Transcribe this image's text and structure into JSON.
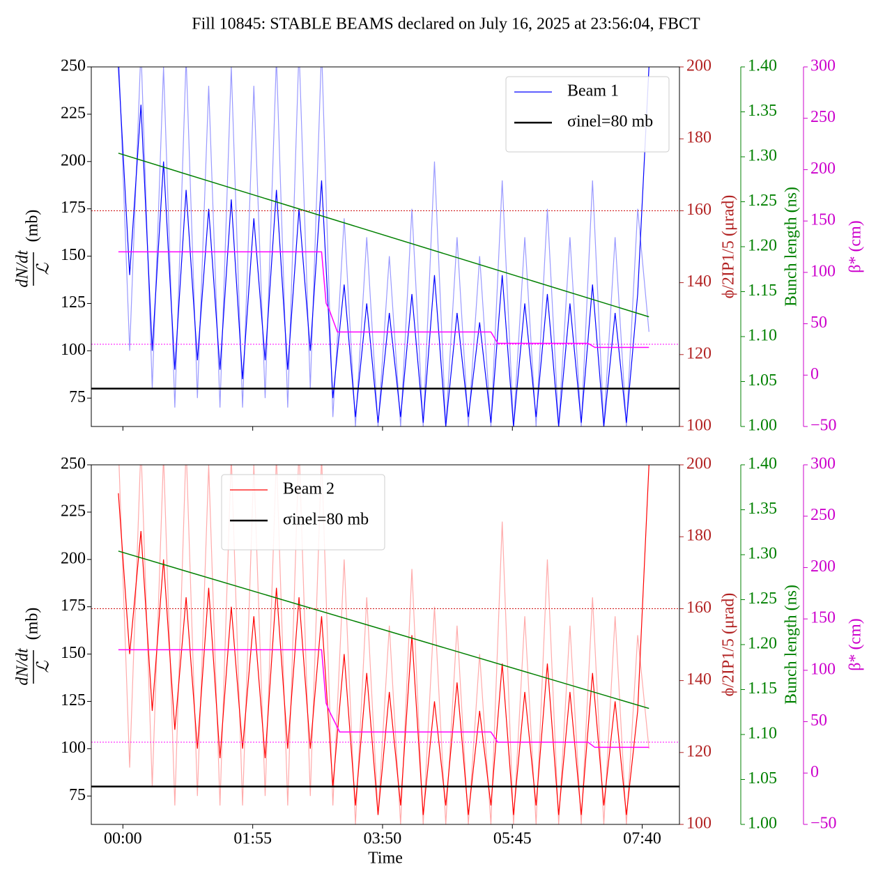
{
  "title": "Fill 10845: STABLE BEAMS declared on July 16, 2025 at 23:56:04, FBCT",
  "chart_data": [
    {
      "type": "line",
      "legend": "upper right",
      "xlim": [
        -28,
        493
      ],
      "xticks": [
        0,
        115,
        230,
        345,
        460
      ],
      "ylim": [
        60,
        250
      ],
      "yticks": [
        75,
        100,
        125,
        150,
        175,
        200,
        225,
        250
      ],
      "ylabel": {
        "numerator": "dN/dt",
        "denominator": "ℒ",
        "unit": "(mb)"
      },
      "y2lim": [
        100,
        200
      ],
      "y2ticks": [
        100,
        120,
        140,
        160,
        180,
        200
      ],
      "y2label": "ϕ/2IP1/5 (μrad)",
      "y2color": "#b22222",
      "y3lim": [
        1.0,
        1.4
      ],
      "y3ticks": [
        {
          "value": 1.0,
          "label": "1.00"
        },
        1.05,
        {
          "value": 1.1,
          "label": "1.10"
        },
        1.15,
        {
          "value": 1.2,
          "label": "1.20"
        },
        1.25,
        {
          "value": 1.3,
          "label": "1.30"
        },
        1.35,
        {
          "value": 1.4,
          "label": "1.40"
        }
      ],
      "y3label": "Bunch length (ns)",
      "y3color": "#008000",
      "y4lim": [
        -50,
        300
      ],
      "y4ticks": [
        {
          "value": -50,
          "label": "−50"
        },
        0,
        50,
        100,
        150,
        200,
        250,
        300
      ],
      "y4label": "β* (cm)",
      "y4color": "#cc00cc",
      "ref_lines": [
        {
          "axis": "y2",
          "value": 160,
          "color": "#cc0000"
        },
        {
          "axis": "y4",
          "value": 30,
          "color": "#ff00ff"
        }
      ],
      "x": [
        -4,
        6,
        16,
        26,
        36,
        46,
        56,
        66,
        76,
        86,
        96,
        106,
        116,
        126,
        136,
        146,
        156,
        166,
        176,
        186,
        196,
        206,
        216,
        226,
        236,
        246,
        256,
        266,
        276,
        286,
        296,
        306,
        316,
        326,
        336,
        346,
        356,
        366,
        376,
        386,
        396,
        406,
        416,
        426,
        436,
        446,
        456,
        466
      ],
      "series": [
        {
          "color": "#9999ff",
          "values": [
            260,
            100,
            260,
            80,
            250,
            70,
            255,
            75,
            240,
            70,
            250,
            70,
            240,
            75,
            255,
            70,
            260,
            80,
            260,
            65,
            170,
            60,
            160,
            60,
            150,
            60,
            175,
            60,
            200,
            60,
            160,
            60,
            150,
            60,
            190,
            60,
            160,
            60,
            175,
            60,
            160,
            60,
            190,
            60,
            160,
            60,
            175,
            110
          ]
        },
        {
          "name": "Beam 1",
          "color": "#0000ff",
          "values": [
            250,
            140,
            230,
            100,
            200,
            90,
            185,
            95,
            175,
            90,
            180,
            85,
            170,
            95,
            185,
            90,
            175,
            100,
            190,
            75,
            135,
            65,
            125,
            62,
            120,
            65,
            130,
            62,
            140,
            60,
            120,
            65,
            115,
            62,
            140,
            60,
            125,
            65,
            130,
            60,
            125,
            62,
            135,
            60,
            120,
            62,
            130,
            250
          ]
        },
        {
          "name": "σinel=80 mb",
          "color": "#000000",
          "hline": 80
        },
        {
          "color": "#008000",
          "axis": "y3",
          "x": [
            -4,
            466
          ],
          "values": [
            1.304,
            1.122
          ]
        },
        {
          "color": "#ff00ff",
          "axis": "y4",
          "x": [
            -4,
            176,
            180,
            183,
            190,
            326,
            332,
            412,
            418,
            466
          ],
          "values": [
            120,
            120,
            70,
            63,
            42,
            42,
            31,
            31,
            27,
            27
          ]
        }
      ]
    },
    {
      "type": "line",
      "legend": "upper center",
      "xlabel": "Time",
      "xlim": [
        -28,
        493
      ],
      "xticks": [
        {
          "value": 0,
          "label": "00:00"
        },
        {
          "value": 115,
          "label": "01:55"
        },
        {
          "value": 230,
          "label": "03:50"
        },
        {
          "value": 345,
          "label": "05:45"
        },
        {
          "value": 460,
          "label": "07:40"
        }
      ],
      "ylim": [
        60,
        250
      ],
      "yticks": [
        75,
        100,
        125,
        150,
        175,
        200,
        225,
        250
      ],
      "ylabel": {
        "numerator": "dN/dt",
        "denominator": "ℒ",
        "unit": "(mb)"
      },
      "y2lim": [
        100,
        200
      ],
      "y2ticks": [
        100,
        120,
        140,
        160,
        180,
        200
      ],
      "y2label": "ϕ/2IP1/5 (μrad)",
      "y2color": "#b22222",
      "y3lim": [
        1.0,
        1.4
      ],
      "y3ticks": [
        {
          "value": 1.0,
          "label": "1.00"
        },
        1.05,
        {
          "value": 1.1,
          "label": "1.10"
        },
        1.15,
        {
          "value": 1.2,
          "label": "1.20"
        },
        1.25,
        {
          "value": 1.3,
          "label": "1.30"
        },
        1.35,
        {
          "value": 1.4,
          "label": "1.40"
        }
      ],
      "y3label": "Bunch length (ns)",
      "y3color": "#008000",
      "y4lim": [
        -50,
        300
      ],
      "y4ticks": [
        {
          "value": -50,
          "label": "−50"
        },
        0,
        50,
        100,
        150,
        200,
        250,
        300
      ],
      "y4label": "β* (cm)",
      "y4color": "#cc00cc",
      "ref_lines": [
        {
          "axis": "y2",
          "value": 160,
          "color": "#cc0000"
        },
        {
          "axis": "y4",
          "value": 30,
          "color": "#ff00ff"
        }
      ],
      "x": [
        -4,
        6,
        16,
        26,
        36,
        46,
        56,
        66,
        76,
        86,
        96,
        106,
        116,
        126,
        136,
        146,
        156,
        166,
        176,
        186,
        196,
        206,
        216,
        226,
        236,
        246,
        256,
        266,
        276,
        286,
        296,
        306,
        316,
        326,
        336,
        346,
        356,
        366,
        376,
        386,
        396,
        406,
        416,
        426,
        436,
        446,
        456,
        466
      ],
      "series": [
        {
          "color": "#ffaaaa",
          "values": [
            260,
            90,
            260,
            80,
            255,
            70,
            260,
            75,
            250,
            70,
            255,
            70,
            250,
            75,
            255,
            70,
            260,
            75,
            255,
            70,
            200,
            60,
            180,
            65,
            165,
            60,
            195,
            60,
            175,
            60,
            165,
            60,
            150,
            60,
            220,
            60,
            170,
            60,
            200,
            60,
            165,
            60,
            180,
            60,
            170,
            60,
            160,
            100
          ]
        },
        {
          "name": "Beam 2",
          "color": "#ff0000",
          "values": [
            235,
            150,
            215,
            120,
            200,
            110,
            180,
            100,
            185,
            95,
            175,
            100,
            170,
            95,
            185,
            100,
            180,
            100,
            170,
            80,
            150,
            70,
            140,
            65,
            130,
            70,
            160,
            65,
            125,
            70,
            135,
            65,
            120,
            70,
            145,
            65,
            130,
            70,
            145,
            65,
            130,
            65,
            140,
            70,
            125,
            65,
            120,
            250
          ]
        },
        {
          "name": "σinel=80 mb",
          "color": "#000000",
          "hline": 80
        },
        {
          "color": "#008000",
          "axis": "y3",
          "x": [
            -4,
            466
          ],
          "values": [
            1.304,
            1.129
          ]
        },
        {
          "color": "#ff00ff",
          "axis": "y4",
          "x": [
            -4,
            176,
            180,
            183,
            192,
            326,
            332,
            412,
            418,
            466
          ],
          "values": [
            120,
            120,
            68,
            60,
            40,
            40,
            30,
            30,
            25,
            25
          ]
        }
      ]
    }
  ]
}
